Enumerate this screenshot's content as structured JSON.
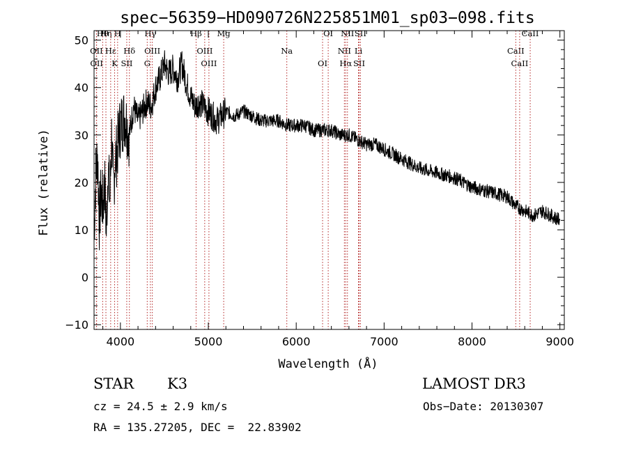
{
  "chart_data": {
    "type": "line",
    "title": "spec−56359−HD090726N225851M01_sp03−098.fits",
    "xlabel": "Wavelength (Å)",
    "ylabel": "Flux (relative)",
    "xlim": [
      3700,
      9050
    ],
    "ylim": [
      -11,
      52
    ],
    "xticks": [
      4000,
      5000,
      6000,
      7000,
      8000,
      9000
    ],
    "yticks": [
      -10,
      0,
      10,
      20,
      30,
      40,
      50
    ],
    "grid": false,
    "series": [
      {
        "x": [
          3700,
          3720,
          3740,
          3760,
          3780,
          3800,
          3820,
          3840,
          3860,
          3880,
          3900,
          3920,
          3940,
          3960,
          3980,
          4000,
          4050,
          4100,
          4150,
          4200,
          4250,
          4300,
          4350,
          4400,
          4450,
          4500,
          4550,
          4600,
          4650,
          4700,
          4750,
          4800,
          4850,
          4900,
          4950,
          5000,
          5050,
          5100,
          5150,
          5200,
          5300,
          5400,
          5500,
          5600,
          5700,
          5800,
          5900,
          6000,
          6100,
          6200,
          6300,
          6400,
          6500,
          6600,
          6700,
          6800,
          6900,
          7000,
          7200,
          7400,
          7600,
          7800,
          8000,
          8200,
          8400,
          8500,
          8600,
          8700,
          8800,
          8900,
          9000
        ],
        "y": [
          10,
          22,
          26,
          12,
          18,
          15,
          20,
          10,
          24,
          16,
          30,
          18,
          25,
          26,
          30,
          32,
          34,
          30,
          36,
          33,
          35,
          37,
          36,
          40,
          42,
          45,
          43,
          44,
          42,
          45,
          41,
          38,
          36,
          37,
          36,
          35,
          34,
          33,
          34,
          35,
          34,
          35,
          34,
          33,
          33,
          33,
          32,
          32,
          32,
          31,
          31,
          31,
          30,
          30,
          29,
          28,
          28,
          27,
          25,
          23,
          22,
          21,
          19,
          18,
          17,
          15,
          14,
          13,
          14,
          13,
          12
        ]
      }
    ],
    "annotations": {
      "lines": [
        {
          "label": "Hθ",
          "x": 3798
        },
        {
          "label": "OII",
          "x": 3727
        },
        {
          "label": "OII",
          "x": 3729
        },
        {
          "label": "Hη",
          "x": 3835
        },
        {
          "label": "Hε",
          "x": 3889
        },
        {
          "label": "K",
          "x": 3934
        },
        {
          "label": "H",
          "x": 3968
        },
        {
          "label": "Hδ",
          "x": 4102
        },
        {
          "label": "SII",
          "x": 4072
        },
        {
          "label": "Hγ",
          "x": 4341
        },
        {
          "label": "OIII",
          "x": 4363
        },
        {
          "label": "G",
          "x": 4305
        },
        {
          "label": "Hβ",
          "x": 4861
        },
        {
          "label": "OIII",
          "x": 4959
        },
        {
          "label": "OIII",
          "x": 5007
        },
        {
          "label": "Mg",
          "x": 5175
        },
        {
          "label": "Na",
          "x": 5893
        },
        {
          "label": "OI",
          "x": 6300
        },
        {
          "label": "OI",
          "x": 6364
        },
        {
          "label": "NII",
          "x": 6548
        },
        {
          "label": "Hα",
          "x": 6563
        },
        {
          "label": "NII",
          "x": 6583
        },
        {
          "label": "Li",
          "x": 6708
        },
        {
          "label": "SII",
          "x": 6716
        },
        {
          "label": "SII",
          "x": 6731
        },
        {
          "label": "CaII",
          "x": 8498
        },
        {
          "label": "CaII",
          "x": 8542
        },
        {
          "label": "CaII",
          "x": 8662
        }
      ]
    }
  },
  "info": {
    "class": "STAR",
    "subclass": "K3",
    "survey": "LAMOST DR3",
    "cz": "cz = 24.5 ± 2.9 km/s",
    "obs_date": "Obs−Date: 20130307",
    "radec": "RA = 135.27205, DEC =  22.83902"
  }
}
